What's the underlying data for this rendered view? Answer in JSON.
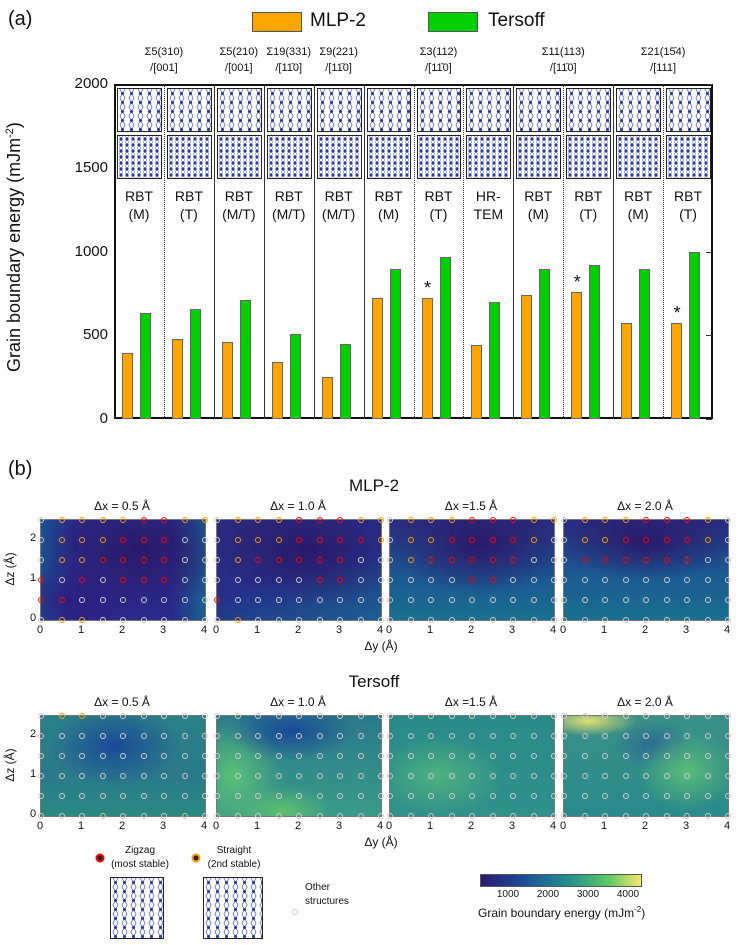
{
  "panel_a": {
    "label": "(a)",
    "legend": [
      {
        "name": "MLP-2",
        "color": "#ffa500"
      },
      {
        "name": "Tersoff",
        "color": "#00d000"
      }
    ]
  },
  "panel_b": {
    "label": "(b)",
    "mlp_title": "MLP-2",
    "tersoff_title": "Tersoff",
    "subplot_titles": [
      "Δx = 0.5 Å",
      "Δx = 1.0 Å",
      "Δx =1.5 Å",
      "Δx = 2.0 Å"
    ],
    "xlabel": "Δy (Å)",
    "ylabel": "Δz (Å)",
    "xticks": [
      "0",
      "1",
      "2",
      "3",
      "4"
    ],
    "yticks": [
      "0",
      "1",
      "2"
    ]
  },
  "legend_b": {
    "zigzag": [
      "Zigzag",
      "(most stable)"
    ],
    "straight": [
      "Straight",
      "(2nd stable)"
    ],
    "other": [
      "Other",
      "structures"
    ],
    "colorbar_label": "Grain boundary energy (mJm",
    "colorbar_sup": "-2",
    "colorbar_ticks": [
      "1000",
      "2000",
      "3000",
      "4000"
    ],
    "colorbar_range": [
      300,
      4300
    ],
    "colors": {
      "zigzag": "#ff0000",
      "straight": "#ff9900",
      "other": "#cccccc"
    }
  },
  "chart_data": [
    {
      "type": "bar",
      "ylabel": "Grain boundary energy (mJm",
      "ylabel_sup": "-2",
      "ylim": [
        0,
        2000
      ],
      "yticks": [
        "0",
        "500",
        "1000",
        "1500",
        "2000"
      ],
      "groups": [
        {
          "name": "Σ5(310)",
          "axis": "/[001]",
          "cols": 2
        },
        {
          "name": "Σ5(210)",
          "axis": "/[001]",
          "cols": 1
        },
        {
          "name": "Σ19(331)",
          "axis": "/[11̄0]",
          "cols": 1
        },
        {
          "name": "Σ9(221)",
          "axis": "/[11̄0]",
          "cols": 1
        },
        {
          "name": "Σ3(112)",
          "axis": "/[11̄0]",
          "cols": 3
        },
        {
          "name": "Σ11(113)",
          "axis": "/[11̄0]",
          "cols": 2
        },
        {
          "name": "Σ21(15̄4)",
          "axis": "/[111]",
          "cols": 2
        }
      ],
      "categories": [
        [
          "RBT",
          "(M)"
        ],
        [
          "RBT",
          "(T)"
        ],
        [
          "RBT",
          "(M/T)"
        ],
        [
          "RBT",
          "(M/T)"
        ],
        [
          "RBT",
          "(M/T)"
        ],
        [
          "RBT",
          "(M)"
        ],
        [
          "RBT",
          "(T)"
        ],
        [
          "HR-",
          "TEM"
        ],
        [
          "RBT",
          "(M)"
        ],
        [
          "RBT",
          "(T)"
        ],
        [
          "RBT",
          "(M)"
        ],
        [
          "RBT",
          "(T)"
        ]
      ],
      "series": [
        {
          "name": "MLP-2",
          "values": [
            395,
            478,
            458,
            340,
            250,
            720,
            722,
            443,
            742,
            760,
            575,
            575
          ]
        },
        {
          "name": "Tersoff",
          "values": [
            635,
            655,
            710,
            505,
            450,
            895,
            965,
            698,
            895,
            920,
            895,
            1000
          ]
        }
      ],
      "annotations": [
        {
          "category": 7,
          "series": "MLP-2",
          "text": "*"
        },
        {
          "category": 10,
          "series": "MLP-2",
          "text": "*"
        },
        {
          "category": 12,
          "series": "MLP-2",
          "text": "*"
        }
      ]
    },
    {
      "type": "heatmap",
      "x_range": [
        0,
        4
      ],
      "y_range": [
        0,
        2.5
      ],
      "colorscale": "viridis",
      "panels": [
        {
          "model": "MLP-2",
          "dx": "0.5",
          "points": [
            "osssszzss",
            "ossszzzoo",
            "osszzzzoo",
            "zozozzzoo",
            "zzooooooo",
            "ossoooooo"
          ]
        },
        {
          "model": "MLP-2",
          "dx": "1.0",
          "points": [
            "ossszzzss",
            "ossszzzzs",
            "oszzzzzoo",
            "ooooozzoo",
            "zoooooooo",
            "osooooooo"
          ]
        },
        {
          "model": "MLP-2",
          "dx": "1.5",
          "points": [
            "ossszzzss",
            "osszzzzso",
            "oszzzzzoo",
            "oooozzooo",
            "ooooooooo",
            "ooooooooo"
          ]
        },
        {
          "model": "MLP-2",
          "dx": "2.0",
          "points": [
            "ossszzzso",
            "osszzzzso",
            "ozzzzzzoo",
            "ooooooooo",
            "ooooooooo",
            "ooooooooo"
          ]
        },
        {
          "model": "Tersoff",
          "dx": "0.5",
          "points": [
            "ossoooooo",
            "ooooooooo",
            "ooooooooo",
            "ooooooooo",
            "ooooooooo",
            "ooooooooo"
          ]
        },
        {
          "model": "Tersoff",
          "dx": "1.0",
          "points": [
            "ooooooooo",
            "ooooooooo",
            "ooooooooo",
            "ooooooooo",
            "ooooooooo",
            "ooooooooo"
          ]
        },
        {
          "model": "Tersoff",
          "dx": "1.5",
          "points": [
            "ooooooooo",
            "ooooooooo",
            "ooooooooo",
            "ooooooooo",
            "ooooooooo",
            "ooooooooo"
          ]
        },
        {
          "model": "Tersoff",
          "dx": "2.0",
          "points": [
            "ooooooooo",
            "ooooooooo",
            "ooooooooo",
            "ooooooooo",
            "ooooooooo",
            "ooooooooo"
          ]
        }
      ]
    }
  ]
}
